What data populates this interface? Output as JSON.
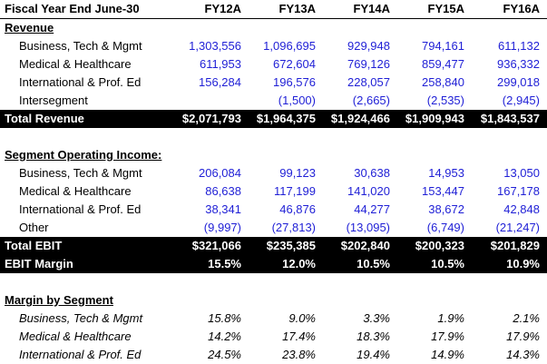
{
  "header": {
    "title": "Fiscal Year End June-30",
    "years": [
      "FY12A",
      "FY13A",
      "FY14A",
      "FY15A",
      "FY16A"
    ]
  },
  "revenue": {
    "section_title": "Revenue",
    "rows": [
      {
        "label": "Business, Tech & Mgmt",
        "values": [
          "1,303,556",
          "1,096,695",
          "929,948",
          "794,161",
          "611,132"
        ]
      },
      {
        "label": "Medical & Healthcare",
        "values": [
          "611,953",
          "672,604",
          "769,126",
          "859,477",
          "936,332"
        ]
      },
      {
        "label": "International & Prof. Ed",
        "values": [
          "156,284",
          "196,576",
          "228,057",
          "258,840",
          "299,018"
        ]
      },
      {
        "label": "Intersegment",
        "values": [
          "",
          "(1,500)",
          "(2,665)",
          "(2,535)",
          "(2,945)"
        ]
      }
    ],
    "total": {
      "label": "Total Revenue",
      "values": [
        "$2,071,793",
        "$1,964,375",
        "$1,924,466",
        "$1,909,943",
        "$1,843,537"
      ]
    }
  },
  "operating_income": {
    "section_title": "Segment Operating Income:",
    "rows": [
      {
        "label": "Business, Tech & Mgmt",
        "values": [
          "206,084",
          "99,123",
          "30,638",
          "14,953",
          "13,050"
        ]
      },
      {
        "label": "Medical & Healthcare",
        "values": [
          "86,638",
          "117,199",
          "141,020",
          "153,447",
          "167,178"
        ]
      },
      {
        "label": "International & Prof. Ed",
        "values": [
          "38,341",
          "46,876",
          "44,277",
          "38,672",
          "42,848"
        ]
      },
      {
        "label": "Other",
        "values": [
          "(9,997)",
          "(27,813)",
          "(13,095)",
          "(6,749)",
          "(21,247)"
        ]
      }
    ],
    "total": {
      "label": "Total EBIT",
      "values": [
        "$321,066",
        "$235,385",
        "$202,840",
        "$200,323",
        "$201,829"
      ]
    },
    "margin": {
      "label": "EBIT Margin",
      "values": [
        "15.5%",
        "12.0%",
        "10.5%",
        "10.5%",
        "10.9%"
      ]
    }
  },
  "segment_margin": {
    "section_title": "Margin by Segment",
    "rows": [
      {
        "label": "Business, Tech & Mgmt",
        "values": [
          "15.8%",
          "9.0%",
          "3.3%",
          "1.9%",
          "2.1%"
        ]
      },
      {
        "label": "Medical & Healthcare",
        "values": [
          "14.2%",
          "17.4%",
          "18.3%",
          "17.9%",
          "17.9%"
        ]
      },
      {
        "label": "International & Prof. Ed",
        "values": [
          "24.5%",
          "23.8%",
          "19.4%",
          "14.9%",
          "14.3%"
        ]
      }
    ]
  }
}
